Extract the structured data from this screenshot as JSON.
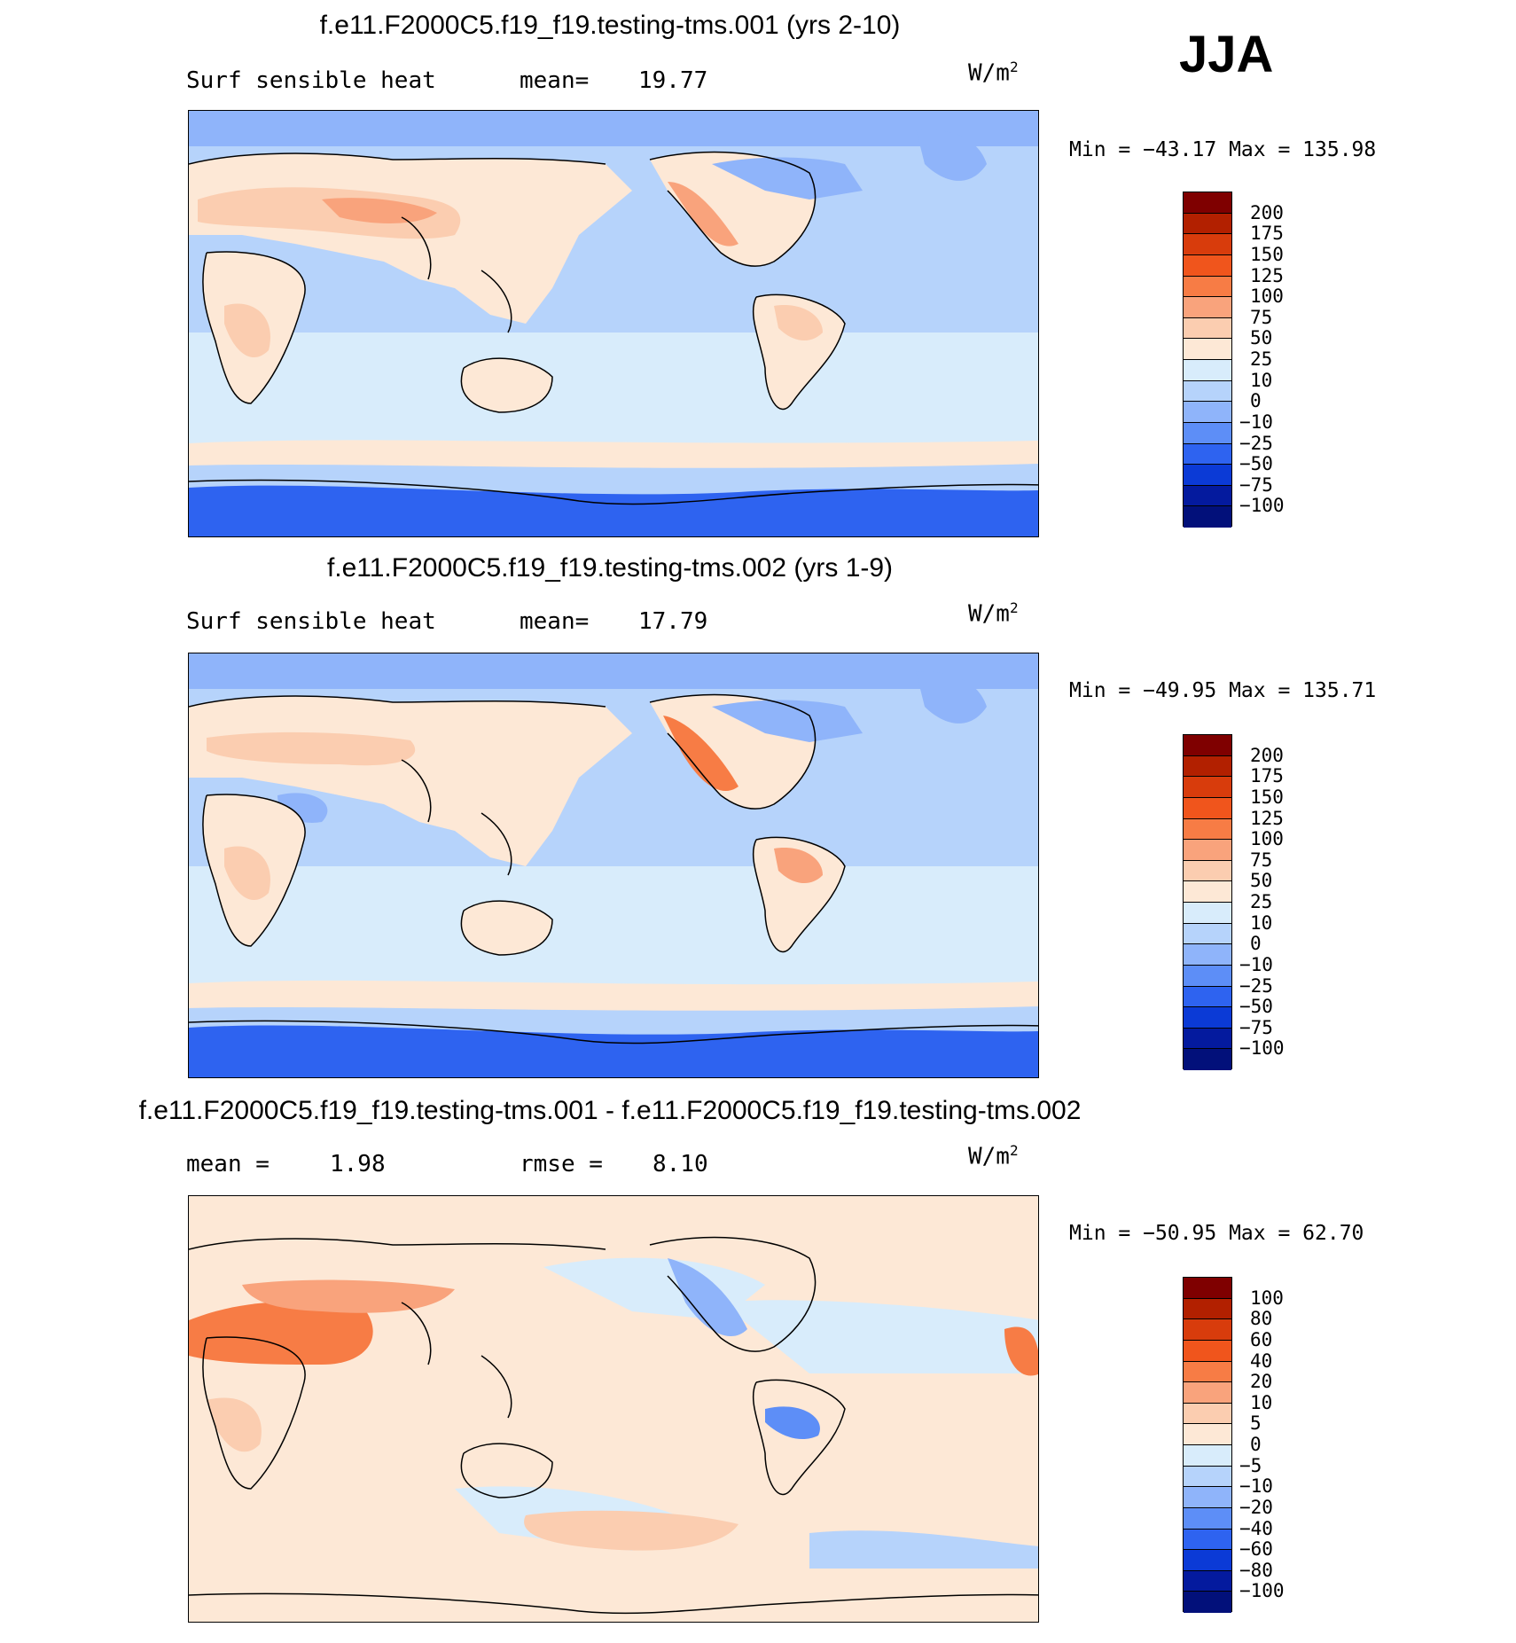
{
  "season": "JJA",
  "units_base": "W/m",
  "units_exp": "2",
  "panels": [
    {
      "title": "f.e11.F2000C5.f19_f19.testing-tms.001 (yrs 2-10)",
      "left_label": "Surf sensible heat",
      "stat_label": "mean=",
      "stat_value": "19.77",
      "min_label": "Min =",
      "min_value": "-43.17",
      "max_label": "Max =",
      "max_value": "135.98"
    },
    {
      "title": "f.e11.F2000C5.f19_f19.testing-tms.002 (yrs 1-9)",
      "left_label": "Surf sensible heat",
      "stat_label": "mean=",
      "stat_value": "17.79",
      "min_label": "Min =",
      "min_value": "-49.95",
      "max_label": "Max =",
      "max_value": "135.71"
    },
    {
      "title": "f.e11.F2000C5.f19_f19.testing-tms.001 - f.e11.F2000C5.f19_f19.testing-tms.002",
      "left_label": "mean =",
      "left_value": "1.98",
      "stat_label": "rmse =",
      "stat_value": "8.10",
      "min_label": "Min =",
      "min_value": "-50.95",
      "max_label": "Max =",
      "max_value": "62.70"
    }
  ],
  "chart_data": [
    {
      "type": "heatmap",
      "title": "f.e11.F2000C5.f19_f19.testing-tms.001 (yrs 2-10)",
      "variable": "Surf sensible heat",
      "units": "W/m2",
      "mean": 19.77,
      "min": -43.17,
      "max": 135.98,
      "levels": [
        "200",
        "175",
        "150",
        "125",
        "100",
        "75",
        "50",
        "25",
        "10",
        "0",
        "-10",
        "-25",
        "-50",
        "-75",
        "-100"
      ],
      "level_colors": [
        "#7f0000",
        "#b22000",
        "#d83c0c",
        "#f0551c",
        "#f77c45",
        "#f9a37c",
        "#fbcdb0",
        "#fde8d6",
        "#d8ecfb",
        "#b6d3fb",
        "#8fb4fa",
        "#5d8ef7",
        "#2e63f0",
        "#0b3ad6",
        "#041a9e",
        "#02107a"
      ],
      "overview": "Warm (25-100) over land in summer hemisphere; cold (-10 to -75) over Antarctica; near-zero oceans"
    },
    {
      "type": "heatmap",
      "title": "f.e11.F2000C5.f19_f19.testing-tms.002 (yrs 1-9)",
      "variable": "Surf sensible heat",
      "units": "W/m2",
      "mean": 17.79,
      "min": -49.95,
      "max": 135.71,
      "levels": [
        "200",
        "175",
        "150",
        "125",
        "100",
        "75",
        "50",
        "25",
        "10",
        "0",
        "-10",
        "-25",
        "-50",
        "-75",
        "-100"
      ],
      "level_colors": [
        "#7f0000",
        "#b22000",
        "#d83c0c",
        "#f0551c",
        "#f77c45",
        "#f9a37c",
        "#fbcdb0",
        "#fde8d6",
        "#d8ecfb",
        "#b6d3fb",
        "#8fb4fa",
        "#5d8ef7",
        "#2e63f0",
        "#0b3ad6",
        "#041a9e",
        "#02107a"
      ]
    },
    {
      "type": "heatmap",
      "title": "f.e11.F2000C5.f19_f19.testing-tms.001 - f.e11.F2000C5.f19_f19.testing-tms.002",
      "units": "W/m2",
      "mean": 1.98,
      "rmse": 8.1,
      "min": -50.95,
      "max": 62.7,
      "levels": [
        "100",
        "80",
        "60",
        "40",
        "20",
        "10",
        "5",
        "0",
        "-5",
        "-10",
        "-20",
        "-40",
        "-60",
        "-80",
        "-100"
      ],
      "level_colors": [
        "#7f0000",
        "#b22000",
        "#d83c0c",
        "#f0551c",
        "#f77c45",
        "#f9a37c",
        "#fbcdb0",
        "#fde8d6",
        "#d8ecfb",
        "#b6d3fb",
        "#8fb4fa",
        "#5d8ef7",
        "#2e63f0",
        "#0b3ad6",
        "#041a9e",
        "#02107a"
      ]
    }
  ]
}
